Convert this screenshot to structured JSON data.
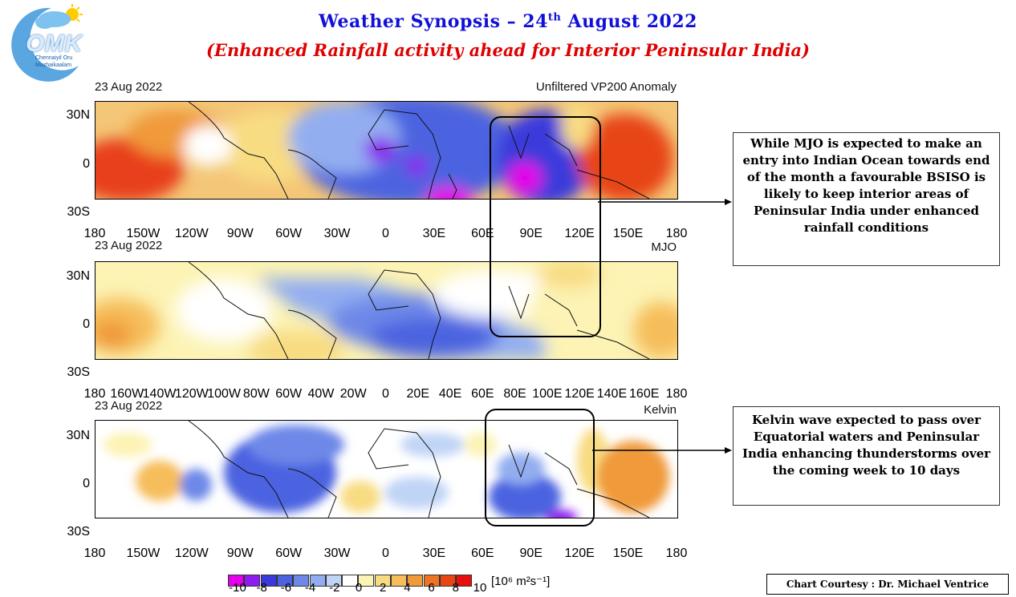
{
  "header": {
    "title_main": "Weather Synopsis – 24",
    "title_sup": "th",
    "title_rest": " August 2022",
    "subtitle": "(Enhanced Rainfall activity ahead for Interior Peninsular India)"
  },
  "logo": {
    "text": "OMK",
    "tagline_1": "Chennaiyil Oru",
    "tagline_2": "Mazhaikaalam"
  },
  "panels": [
    {
      "date": "23 Aug 2022",
      "label": "Unfiltered VP200 Anomaly"
    },
    {
      "date": "23 Aug 2022",
      "label": "MJO"
    },
    {
      "date": "23 Aug 2022",
      "label": "Kelvin"
    }
  ],
  "lat_ticks": [
    "30N",
    "0",
    "30S"
  ],
  "lon_ticks_sparse": [
    "180",
    "150W",
    "120W",
    "90W",
    "60W",
    "30W",
    "0",
    "30E",
    "60E",
    "90E",
    "120E",
    "150E",
    "180"
  ],
  "lon_ticks_dense": [
    "180",
    "160W",
    "140W",
    "120W",
    "100W",
    "80W",
    "60W",
    "40W",
    "20W",
    "0",
    "20E",
    "40E",
    "60E",
    "80E",
    "100E",
    "120E",
    "140E",
    "160E",
    "180"
  ],
  "notes": {
    "bsiso": "While MJO is expected to make an entry into Indian Ocean towards end of the month a favourable BSISO is likely to keep interior areas of Peninsular India under enhanced rainfall conditions",
    "kelvin": "Kelvin wave expected to pass over Equatorial waters and Peninsular India enhancing thunderstorms over the coming week to 10 days"
  },
  "colorbar": {
    "labels": [
      "-10",
      "-8",
      "-6",
      "-4",
      "-2",
      "0",
      "2",
      "4",
      "6",
      "8",
      "10"
    ],
    "unit": "[10⁶ m²s⁻¹]",
    "colors": [
      "#e400e8",
      "#8c1cf0",
      "#3a3adc",
      "#4b63e0",
      "#6d88e8",
      "#93aef0",
      "#c0d4f6",
      "#ffffff",
      "#fcf3b4",
      "#f8dc82",
      "#f6bd5a",
      "#f09a3a",
      "#ec7424",
      "#e84414",
      "#e60e0e"
    ]
  },
  "courtesy": "Chart Courtesy : Dr. Michael Ventrice"
}
